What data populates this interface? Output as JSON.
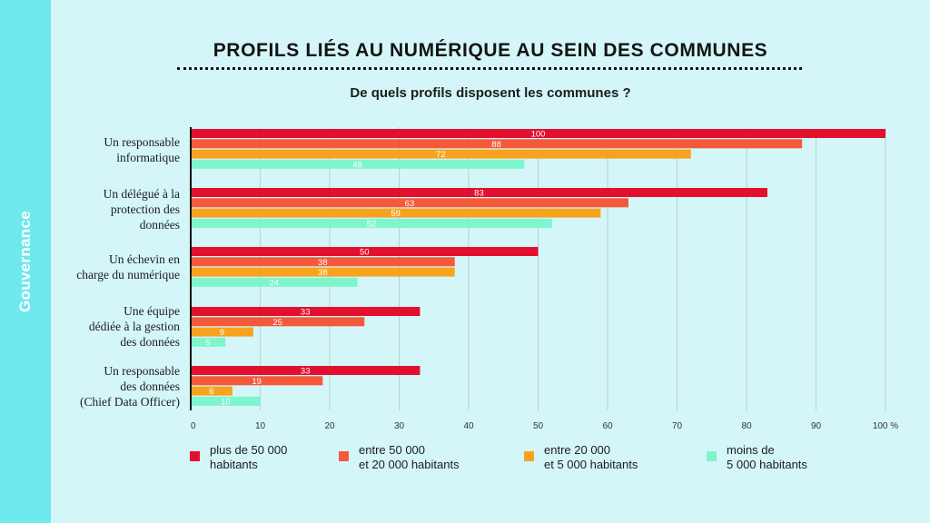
{
  "side_label": "Gouvernance",
  "title": "PROFILS LIÉS AU NUMÉRIQUE AU SEIN DES COMMUNES",
  "subtitle": "De quels profils disposent les communes ?",
  "colors": {
    "background": "#d4f6f8",
    "side_strip": "#6fe9ee"
  },
  "categories": [
    {
      "label": "Un responsable\ninformatique"
    },
    {
      "label": "Un délégué à la\nprotection des\ndonnées"
    },
    {
      "label": "Un échevin en\ncharge du numérique"
    },
    {
      "label": "Une équipe\ndédiée à la gestion\ndes données"
    },
    {
      "label": "Un responsable\ndes données\n(Chief Data Officer)"
    }
  ],
  "legend": [
    {
      "label": "plus de 50 000\nhabitants",
      "color": "#e2102e"
    },
    {
      "label": "entre 50 000\net 20 000 habitants",
      "color": "#f4593a"
    },
    {
      "label": "entre 20 000\net 5 000 habitants",
      "color": "#f9a21d"
    },
    {
      "label": "moins de\n5 000 habitants",
      "color": "#7ef5cc"
    }
  ],
  "chart_data": {
    "type": "bar",
    "orientation": "horizontal",
    "title": "PROFILS LIÉS AU NUMÉRIQUE AU SEIN DES COMMUNES",
    "subtitle": "De quels profils disposent les communes ?",
    "categories": [
      "Un responsable informatique",
      "Un délégué à la protection des données",
      "Un échevin en charge du numérique",
      "Une équipe dédiée à la gestion des données",
      "Un responsable des données (Chief Data Officer)"
    ],
    "series": [
      {
        "name": "plus de 50 000 habitants",
        "color": "#e2102e",
        "values": [
          100,
          83,
          50,
          33,
          33
        ],
        "labels": [
          "100",
          "83",
          "50",
          "33",
          "33"
        ]
      },
      {
        "name": "entre 50 000 et 20 000 habitants",
        "color": "#f4593a",
        "values": [
          88,
          63,
          38,
          25,
          19
        ],
        "labels": [
          "88",
          "63",
          "38",
          "25",
          "19"
        ]
      },
      {
        "name": "entre 20 000 et 5 000 habitants",
        "color": "#f9a21d",
        "values": [
          72,
          59,
          38,
          9,
          6
        ],
        "labels": [
          "72",
          "59",
          "38",
          "9",
          "6"
        ]
      },
      {
        "name": "moins de 5 000 habitants",
        "color": "#7ef5cc",
        "values": [
          48,
          52,
          24,
          5,
          10
        ],
        "labels": [
          "48",
          "52",
          "24",
          "5",
          "10"
        ]
      }
    ],
    "x_ticks": [
      "0",
      "10",
      "20",
      "30",
      "40",
      "50",
      "60",
      "70",
      "80",
      "90",
      "100 %"
    ],
    "xlim": [
      0,
      100
    ],
    "grid": "vertical",
    "legend_position": "bottom"
  }
}
